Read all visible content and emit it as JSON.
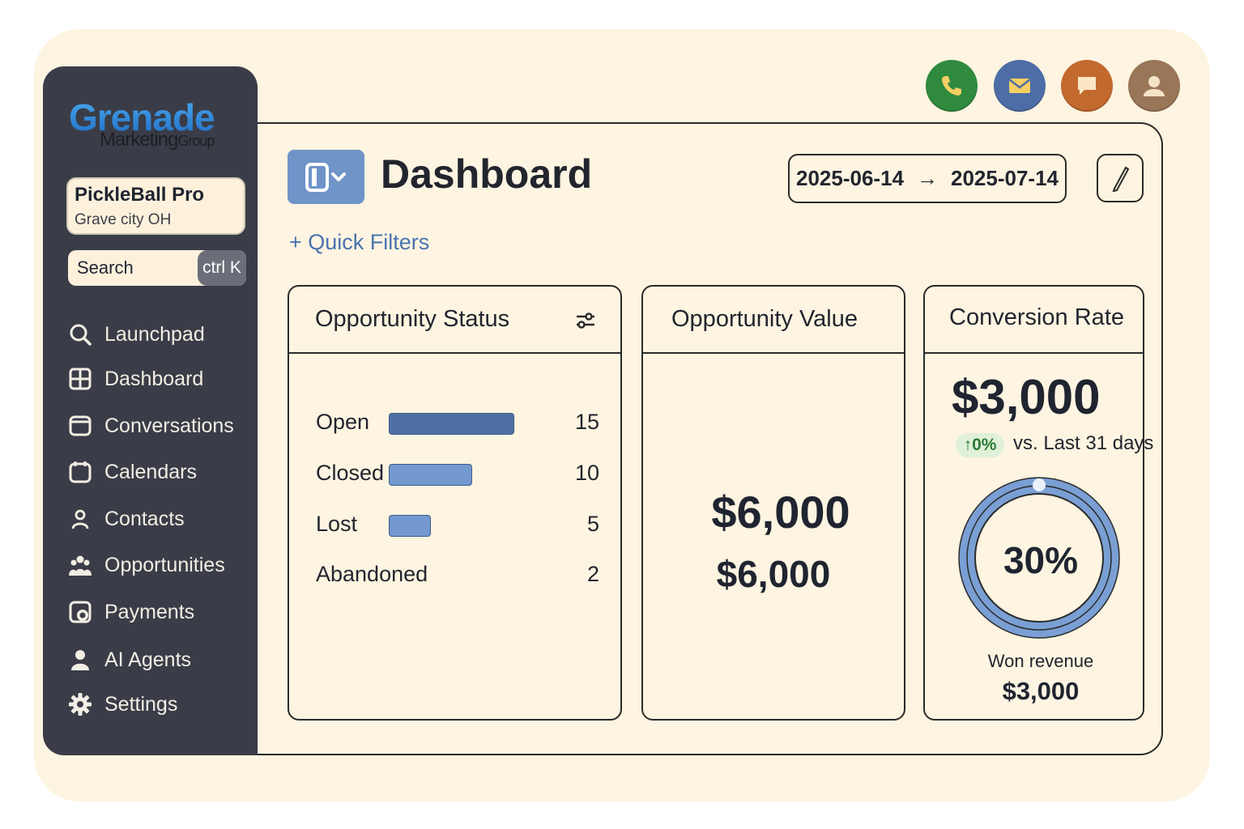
{
  "brand": {
    "logo_main": "Grenade",
    "logo_sub": "Marketing",
    "logo_sub_small": "Group"
  },
  "account": {
    "name": "PickleBall Pro",
    "location": "Grave city OH"
  },
  "search": {
    "label": "Search",
    "shortcut": "ctrl K"
  },
  "sidebar": {
    "items": [
      {
        "label": "Launchpad",
        "icon": "search-icon"
      },
      {
        "label": "Dashboard",
        "icon": "dashboard-grid-icon"
      },
      {
        "label": "Conversations",
        "icon": "chat-window-icon"
      },
      {
        "label": "Calendars",
        "icon": "calendar-icon"
      },
      {
        "label": "Contacts",
        "icon": "person-outline-icon"
      },
      {
        "label": "Opportunities",
        "icon": "group-icon"
      },
      {
        "label": "Payments",
        "icon": "payment-icon"
      },
      {
        "label": "AI Agents",
        "icon": "user-icon"
      },
      {
        "label": "Settings",
        "icon": "gear-icon"
      }
    ]
  },
  "header_icons": [
    {
      "icon": "phone-icon",
      "color": "#2f8a3d"
    },
    {
      "icon": "mail-icon",
      "color": "#4d6da6"
    },
    {
      "icon": "chat-icon",
      "color": "#c2692e"
    },
    {
      "icon": "avatar-icon",
      "color": "#9a7658"
    }
  ],
  "header": {
    "title": "Dashboard",
    "date_start": "2025-06-14",
    "date_arrow": "→",
    "date_end": "2025-07-14",
    "quick_filters": "+ Quick Filters"
  },
  "opportunity_status": {
    "title": "Opportunity Status",
    "rows": [
      {
        "label": "Open",
        "value": 15,
        "color": "#4f6fa3"
      },
      {
        "label": "Closed",
        "value": 10,
        "color": "#7399cf"
      },
      {
        "label": "Lost",
        "value": 5,
        "color": "#7399cf"
      },
      {
        "label": "Abandoned",
        "value": 2,
        "color": ""
      }
    ]
  },
  "opportunity_value": {
    "title": "Opportunity Value",
    "value_primary": "$6,000",
    "value_secondary": "$6,000"
  },
  "conversion_rate": {
    "title": "Conversion Rate",
    "value": "$3,000",
    "delta": "↑0%",
    "delta_text": "vs. Last 31 days",
    "percent": "30%",
    "won_label": "Won revenue",
    "won_value": "$3,000"
  }
}
